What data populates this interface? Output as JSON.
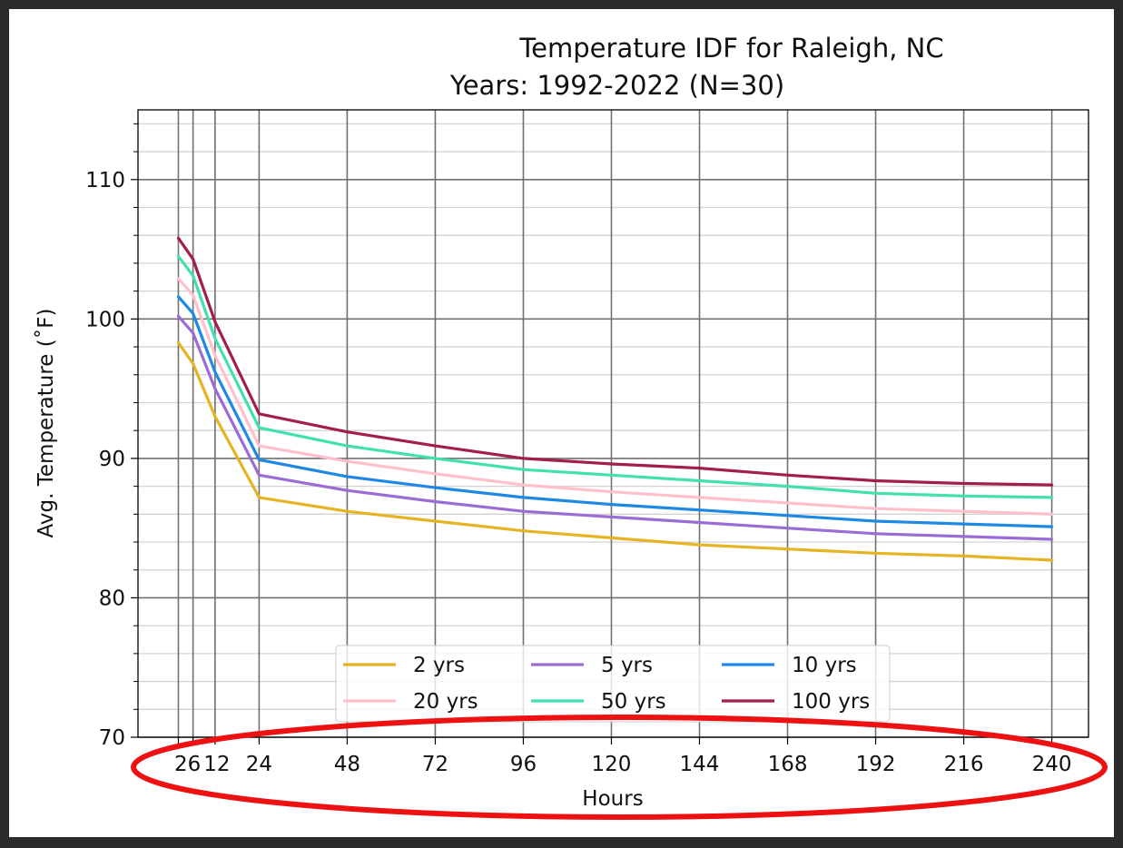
{
  "chart_data": {
    "type": "line",
    "title": "Temperature IDF for Raleigh, NC",
    "subtitle": "Years: 1992-2022 (N=30)",
    "xlabel": "Hours",
    "ylabel": "Avg. Temperature ($^\\circ$F)",
    "ylabel_display": "Avg. Temperature (˚F)",
    "xlim": [
      -9,
      250
    ],
    "ylim": [
      70,
      115
    ],
    "x": [
      2,
      6,
      12,
      24,
      48,
      72,
      96,
      120,
      144,
      168,
      192,
      216,
      240
    ],
    "x_tick_labels": [
      "2",
      "6",
      "12",
      "24",
      "48",
      "72",
      "96",
      "120",
      "144",
      "168",
      "192",
      "216",
      "240"
    ],
    "x_tick_display": [
      "",
      "26",
      "12",
      "24",
      "48",
      "72",
      "96",
      "120",
      "144",
      "168",
      "192",
      "216",
      "240"
    ],
    "y_ticks": [
      70,
      80,
      90,
      100,
      110
    ],
    "y_tick_labels": [
      "70",
      "80",
      "90",
      "100",
      "110"
    ],
    "grid": true,
    "legend_position": "lower-center",
    "series": [
      {
        "name": "2 yrs",
        "color": "#e6b422",
        "values": [
          98.3,
          96.8,
          93.0,
          87.2,
          86.2,
          85.5,
          84.8,
          84.3,
          83.8,
          83.5,
          83.2,
          83.0,
          82.7
        ]
      },
      {
        "name": "5 yrs",
        "color": "#9b6bd6",
        "values": [
          100.2,
          99.0,
          95.0,
          88.8,
          87.7,
          86.9,
          86.2,
          85.8,
          85.4,
          85.0,
          84.6,
          84.4,
          84.2
        ]
      },
      {
        "name": "10 yrs",
        "color": "#1e88e5",
        "values": [
          101.6,
          100.4,
          96.2,
          89.9,
          88.7,
          87.9,
          87.2,
          86.7,
          86.3,
          85.9,
          85.5,
          85.3,
          85.1
        ]
      },
      {
        "name": "20 yrs",
        "color": "#ffc0cb",
        "values": [
          102.9,
          101.7,
          97.4,
          90.9,
          89.8,
          88.9,
          88.1,
          87.6,
          87.2,
          86.8,
          86.4,
          86.2,
          86.0
        ]
      },
      {
        "name": "50 yrs",
        "color": "#40e0b0",
        "values": [
          104.5,
          103.1,
          98.6,
          92.2,
          90.9,
          90.0,
          89.2,
          88.8,
          88.4,
          88.0,
          87.5,
          87.3,
          87.2
        ]
      },
      {
        "name": "100 yrs",
        "color": "#a31d4f",
        "values": [
          105.8,
          104.3,
          99.8,
          93.2,
          91.9,
          90.9,
          90.0,
          89.6,
          89.3,
          88.8,
          88.4,
          88.2,
          88.1
        ]
      }
    ],
    "annotation": {
      "shape": "ellipse",
      "color": "#ee1111",
      "target": "x-axis tick labels and xlabel"
    }
  }
}
